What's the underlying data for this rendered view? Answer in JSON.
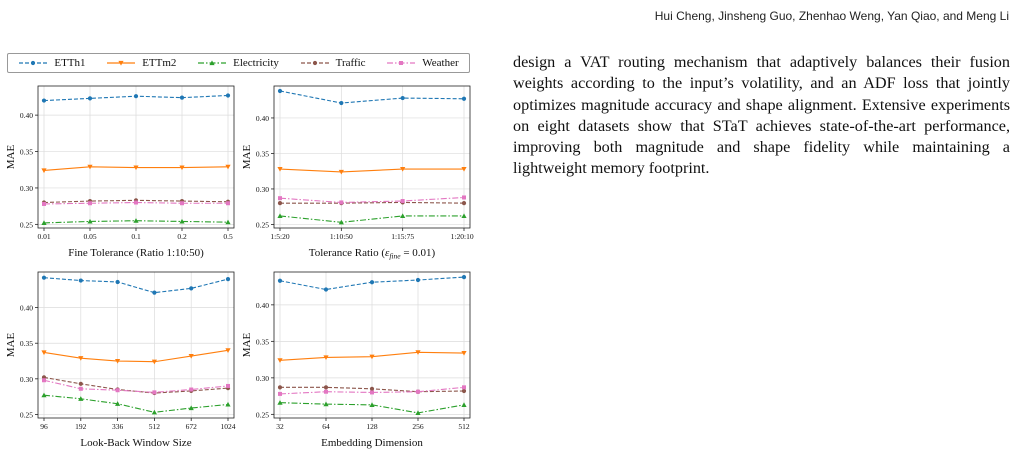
{
  "header": {
    "authors": "Hui Cheng, Jinsheng Guo, Zhenhao Weng, Yan Qiao, and Meng Li"
  },
  "body_text": "design a VAT routing mechanism that adaptively balances their fusion weights according to the input’s volatility, and an ADF loss that jointly optimizes magnitude accuracy and shape alignment. Extensive experiments on eight datasets show that STaT achieves state-of-the-art performance, improving both magnitude and shape fidelity while maintaining a lightweight memory footprint.",
  "colors": {
    "ETTh1": "#1f77b4",
    "ETTm2": "#ff7f0e",
    "Electricity": "#2ca02c",
    "Traffic": "#8c564b",
    "Weather": "#e377c2"
  },
  "legend": [
    {
      "name": "ETTh1",
      "dash": "4,2",
      "marker": "circle"
    },
    {
      "name": "ETTm2",
      "dash": "",
      "marker": "triangle-down"
    },
    {
      "name": "Electricity",
      "dash": "6,2,1.5,2",
      "marker": "triangle-up"
    },
    {
      "name": "Traffic",
      "dash": "4,2",
      "marker": "circle"
    },
    {
      "name": "Weather",
      "dash": "6,2,1.5,2",
      "marker": "square"
    }
  ],
  "chart_data": [
    {
      "type": "line",
      "xlabel": "Fine Tolerance (Ratio 1:10:50)",
      "ylabel": "MAE",
      "categories": [
        "0.01",
        "0.05",
        "0.1",
        "0.2",
        "0.5"
      ],
      "ylim": [
        0.245,
        0.44
      ],
      "yticks": [
        "0.25",
        "0.30",
        "0.35",
        "0.40"
      ],
      "grid": true,
      "series": [
        {
          "name": "ETTh1",
          "values": [
            0.42,
            0.423,
            0.426,
            0.424,
            0.427
          ]
        },
        {
          "name": "ETTm2",
          "values": [
            0.324,
            0.329,
            0.328,
            0.328,
            0.329
          ]
        },
        {
          "name": "Electricity",
          "values": [
            0.252,
            0.254,
            0.255,
            0.254,
            0.253
          ]
        },
        {
          "name": "Traffic",
          "values": [
            0.28,
            0.282,
            0.283,
            0.282,
            0.281
          ]
        },
        {
          "name": "Weather",
          "values": [
            0.278,
            0.279,
            0.28,
            0.279,
            0.279
          ]
        }
      ]
    },
    {
      "type": "line",
      "xlabel": "Tolerance Ratio (ε_fine = 0.01)",
      "xlabel_parts": [
        "Tolerance Ratio (",
        "ε",
        "fine",
        " = 0.01)"
      ],
      "ylabel": "MAE",
      "categories": [
        "1:5:20",
        "1:10:50",
        "1:15:75",
        "1:20:100"
      ],
      "ylim": [
        0.245,
        0.445
      ],
      "yticks": [
        "0.25",
        "0.30",
        "0.35",
        "0.40"
      ],
      "grid": true,
      "series": [
        {
          "name": "ETTh1",
          "values": [
            0.438,
            0.421,
            0.428,
            0.427
          ]
        },
        {
          "name": "ETTm2",
          "values": [
            0.328,
            0.324,
            0.328,
            0.328
          ]
        },
        {
          "name": "Electricity",
          "values": [
            0.262,
            0.253,
            0.262,
            0.262
          ]
        },
        {
          "name": "Traffic",
          "values": [
            0.28,
            0.28,
            0.281,
            0.28
          ]
        },
        {
          "name": "Weather",
          "values": [
            0.287,
            0.281,
            0.283,
            0.288
          ]
        }
      ]
    },
    {
      "type": "line",
      "xlabel": "Look-Back Window Size",
      "ylabel": "MAE",
      "categories": [
        "96",
        "192",
        "336",
        "512",
        "672",
        "1024"
      ],
      "ylim": [
        0.245,
        0.45
      ],
      "yticks": [
        "0.25",
        "0.30",
        "0.35",
        "0.40"
      ],
      "grid": true,
      "series": [
        {
          "name": "ETTh1",
          "values": [
            0.442,
            0.438,
            0.436,
            0.421,
            0.427,
            0.44
          ]
        },
        {
          "name": "ETTm2",
          "values": [
            0.337,
            0.329,
            0.325,
            0.324,
            0.332,
            0.34
          ]
        },
        {
          "name": "Electricity",
          "values": [
            0.277,
            0.272,
            0.265,
            0.253,
            0.259,
            0.264
          ]
        },
        {
          "name": "Traffic",
          "values": [
            0.302,
            0.293,
            0.285,
            0.28,
            0.283,
            0.287
          ]
        },
        {
          "name": "Weather",
          "values": [
            0.298,
            0.286,
            0.284,
            0.281,
            0.285,
            0.29
          ]
        }
      ]
    },
    {
      "type": "line",
      "xlabel": "Embedding Dimension",
      "ylabel": "MAE",
      "categories": [
        "32",
        "64",
        "128",
        "256",
        "512"
      ],
      "ylim": [
        0.245,
        0.445
      ],
      "yticks": [
        "0.25",
        "0.30",
        "0.35",
        "0.40"
      ],
      "grid": true,
      "series": [
        {
          "name": "ETTh1",
          "values": [
            0.433,
            0.421,
            0.431,
            0.434,
            0.438
          ]
        },
        {
          "name": "ETTm2",
          "values": [
            0.324,
            0.328,
            0.329,
            0.335,
            0.334
          ]
        },
        {
          "name": "Electricity",
          "values": [
            0.266,
            0.264,
            0.263,
            0.252,
            0.263
          ]
        },
        {
          "name": "Traffic",
          "values": [
            0.287,
            0.287,
            0.285,
            0.281,
            0.282
          ]
        },
        {
          "name": "Weather",
          "values": [
            0.278,
            0.281,
            0.28,
            0.281,
            0.287
          ]
        }
      ]
    }
  ]
}
